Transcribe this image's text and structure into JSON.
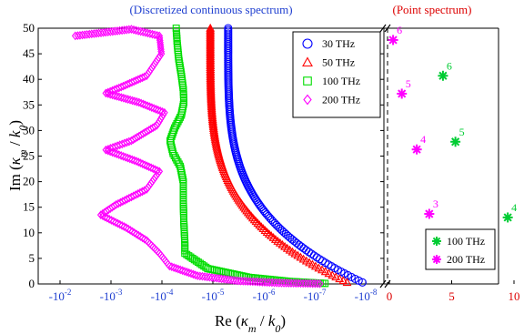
{
  "chart_data": [
    {
      "type": "scatter",
      "title": "(Discretized continuous spectrum)",
      "title_color": "#1f3fd0",
      "xlabel": "Re (κ_m / k_0)",
      "xlabel_parts": {
        "pre": "Re (",
        "kappa": "κ",
        "sub_m": "m",
        "slash": " / ",
        "k": "k",
        "sub_0": "0",
        "post": ")"
      },
      "ylabel": "Im (κ_m / k_0)",
      "ylabel_parts": {
        "pre": "Im (",
        "kappa": "κ",
        "sub_m": "m",
        "slash": " / ",
        "k": "k",
        "sub_0": "0",
        "post": ")"
      },
      "x_scale": "symlog (negative)",
      "x_tick_labels": [
        {
          "base": "-10",
          "exp": "-2",
          "color": "#1f3fd0"
        },
        {
          "base": "-10",
          "exp": "-3",
          "color": "#1f3fd0"
        },
        {
          "base": "-10",
          "exp": "-4",
          "color": "#1f3fd0"
        },
        {
          "base": "-10",
          "exp": "-5",
          "color": "#1f3fd0"
        },
        {
          "base": "-10",
          "exp": "-6",
          "color": "#1f3fd0"
        },
        {
          "base": "-10",
          "exp": "-7",
          "color": "#1f3fd0"
        },
        {
          "base": "-10",
          "exp": "-8",
          "color": "#1f3fd0"
        }
      ],
      "y_ticks": [
        0,
        5,
        10,
        15,
        20,
        25,
        30,
        35,
        40,
        45,
        50
      ],
      "ylim": [
        0,
        50
      ],
      "legend_position": "top-right",
      "series": [
        {
          "name": "30 THz",
          "marker": "circle",
          "color": "#0000ff",
          "log10_re_start": -5.3,
          "log10_re_end": -8.0
        },
        {
          "name": "50 THz",
          "marker": "triangle",
          "color": "#ff0000",
          "log10_re_start": -4.95,
          "log10_re_end": -7.7
        },
        {
          "name": "100 THz",
          "marker": "square",
          "color": "#00dd00",
          "points": [
            [
              -4.28,
              50
            ],
            [
              -4.3,
              47
            ],
            [
              -4.33,
              44
            ],
            [
              -4.38,
              41
            ],
            [
              -4.42,
              38
            ],
            [
              -4.43,
              35.5
            ],
            [
              -4.38,
              33
            ],
            [
              -4.25,
              30.5
            ],
            [
              -4.16,
              28
            ],
            [
              -4.22,
              25.5
            ],
            [
              -4.36,
              23
            ],
            [
              -4.42,
              20
            ],
            [
              -4.42,
              16
            ],
            [
              -4.43,
              12
            ],
            [
              -4.45,
              8
            ],
            [
              -4.45,
              6
            ],
            [
              -4.9,
              3
            ],
            [
              -5.7,
              1.3
            ],
            [
              -6.5,
              0.5
            ],
            [
              -7.2,
              0.1
            ]
          ]
        },
        {
          "name": "200 THz",
          "marker": "diamond",
          "color": "#ff00ff",
          "points": [
            [
              -2.3,
              48.5
            ],
            [
              -3.4,
              49.8
            ],
            [
              -3.95,
              48.5
            ],
            [
              -3.99,
              45
            ],
            [
              -3.7,
              40.7
            ],
            [
              -3.2,
              38.5
            ],
            [
              -2.9,
              37.3
            ],
            [
              -3.55,
              35.5
            ],
            [
              -4.05,
              33.5
            ],
            [
              -3.9,
              31
            ],
            [
              -3.4,
              28
            ],
            [
              -2.9,
              26.2
            ],
            [
              -3.5,
              24
            ],
            [
              -3.95,
              22
            ],
            [
              -3.7,
              18.5
            ],
            [
              -3.1,
              15.5
            ],
            [
              -2.8,
              13.5
            ],
            [
              -3.3,
              11
            ],
            [
              -3.7,
              8.5
            ],
            [
              -3.95,
              6
            ],
            [
              -4.15,
              3.5
            ],
            [
              -4.7,
              1.6
            ],
            [
              -5.5,
              0.6
            ],
            [
              -6.3,
              0.2
            ],
            [
              -7.1,
              0.05
            ]
          ]
        }
      ]
    },
    {
      "type": "scatter",
      "title": "(Point spectrum)",
      "title_color": "#dd0000",
      "x_ticks": [
        0,
        5,
        10
      ],
      "x_tick_color": "#dd0000",
      "ylim": [
        0,
        50
      ],
      "legend_position": "bottom-right",
      "series": [
        {
          "name": "100 THz",
          "marker": "star",
          "color": "#00cc33",
          "points": [
            {
              "x": 9.5,
              "y": 13,
              "label": "4"
            },
            {
              "x": 5.3,
              "y": 27.8,
              "label": "5"
            },
            {
              "x": 4.3,
              "y": 40.7,
              "label": "6"
            }
          ]
        },
        {
          "name": "200 THz",
          "marker": "star",
          "color": "#ff00ff",
          "points": [
            {
              "x": 3.2,
              "y": 13.7,
              "label": "3"
            },
            {
              "x": 2.2,
              "y": 26.3,
              "label": "4"
            },
            {
              "x": 1.0,
              "y": 37.2,
              "label": "5"
            },
            {
              "x": 0.3,
              "y": 47.7,
              "label": "6"
            }
          ]
        }
      ]
    }
  ]
}
